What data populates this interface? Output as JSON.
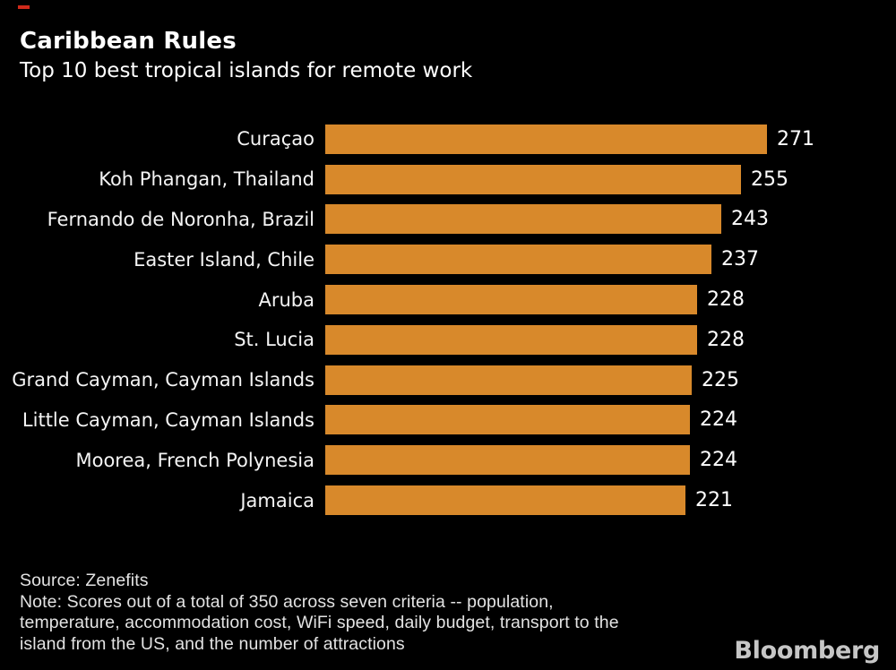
{
  "header": {
    "title": "Caribbean Rules",
    "subtitle": "Top 10 best tropical islands for remote work"
  },
  "chart_data": {
    "type": "bar",
    "orientation": "horizontal",
    "title": "Caribbean Rules",
    "subtitle": "Top 10 best tropical islands for remote work",
    "categories": [
      "Curaçao",
      "Koh Phangan, Thailand",
      "Fernando de Noronha, Brazil",
      "Easter Island, Chile",
      "Aruba",
      "St. Lucia",
      "Grand Cayman, Cayman Islands",
      "Little Cayman, Cayman Islands",
      "Moorea, French Polynesia",
      "Jamaica"
    ],
    "values": [
      271,
      255,
      243,
      237,
      228,
      228,
      225,
      224,
      224,
      221
    ],
    "score_total_possible": 350,
    "bar_color": "#d8892b",
    "background_color": "#000000",
    "grid": false,
    "legend": false,
    "value_labels_position": "right-of-bar"
  },
  "footer": {
    "source_line": "Source: Zenefits",
    "note_lines": [
      "Note: Scores out of a total of 350 across seven criteria -- population,",
      "temperature, accommodation cost, WiFi speed, daily budget, transport to the",
      "island from the US, and the number of attractions"
    ]
  },
  "branding": {
    "logo_text": "Bloomberg",
    "accent_red": "#cf2a1b"
  }
}
